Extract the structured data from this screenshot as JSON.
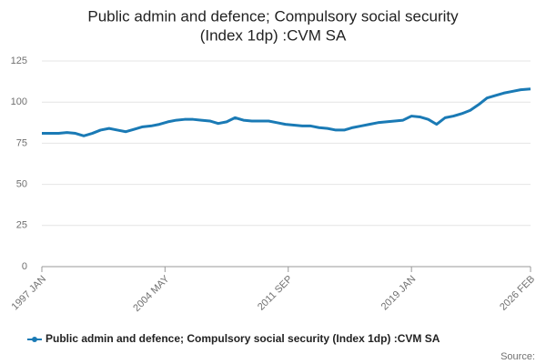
{
  "chart_data": {
    "type": "line",
    "title": [
      "Public admin and defence; Compulsory social security",
      "(Index 1dp) :CVM SA"
    ],
    "x": [
      "1997 JAN",
      "1997 JUL",
      "1998 JAN",
      "1998 JUL",
      "1999 JAN",
      "1999 JUL",
      "2000 JAN",
      "2000 JUL",
      "2001 JAN",
      "2001 JUL",
      "2002 JAN",
      "2002 JUL",
      "2003 JAN",
      "2003 JUL",
      "2004 JAN",
      "2004 JUL",
      "2005 JAN",
      "2005 JUL",
      "2006 JAN",
      "2006 JUL",
      "2007 JAN",
      "2007 JUL",
      "2008 JAN",
      "2008 JUL",
      "2009 JAN",
      "2009 JUL",
      "2010 JAN",
      "2010 JUL",
      "2011 JAN",
      "2011 JUL",
      "2012 JAN",
      "2012 JUL",
      "2013 JAN",
      "2013 JUL",
      "2014 JAN",
      "2014 JUL",
      "2015 JAN",
      "2015 JUL",
      "2016 JAN",
      "2016 JUL",
      "2017 JAN",
      "2017 JUL",
      "2018 JAN",
      "2018 JUL",
      "2019 JAN",
      "2019 JUL",
      "2020 JAN",
      "2020 JUL",
      "2021 JAN",
      "2021 JUL",
      "2022 JAN",
      "2022 JUL",
      "2023 JAN",
      "2023 JUL",
      "2024 JAN",
      "2024 JUL",
      "2025 JAN",
      "2025 JUL",
      "2026 FEB"
    ],
    "series": [
      {
        "name": "Public admin and defence; Compulsory social security (Index 1dp) :CVM SA",
        "color": "#1a7ab5",
        "values": [
          81,
          81,
          81,
          81.5,
          81,
          79.5,
          81,
          83,
          84,
          83,
          82,
          83.5,
          85,
          85.5,
          86.5,
          88,
          89,
          89.5,
          89.5,
          89,
          88.5,
          87,
          88,
          90.5,
          89,
          88.5,
          88.5,
          88.5,
          87.5,
          86.5,
          86,
          85.5,
          85.5,
          84.5,
          84,
          83,
          83,
          84.5,
          85.5,
          86.5,
          87.5,
          88,
          88.5,
          89,
          91.5,
          91,
          89.5,
          86.5,
          90.5,
          91.5,
          93,
          95,
          98.5,
          102.5,
          104,
          105.5,
          106.5,
          107.5,
          108
        ]
      }
    ],
    "ylim": [
      0,
      125
    ],
    "yticks": [
      0,
      25,
      50,
      75,
      100,
      125
    ],
    "xticks": [
      "1997 JAN",
      "2004 MAY",
      "2011 SEP",
      "2019 JAN",
      "2026 FEB"
    ],
    "grid": true,
    "legend": "bottom",
    "source_label": "Source:"
  }
}
